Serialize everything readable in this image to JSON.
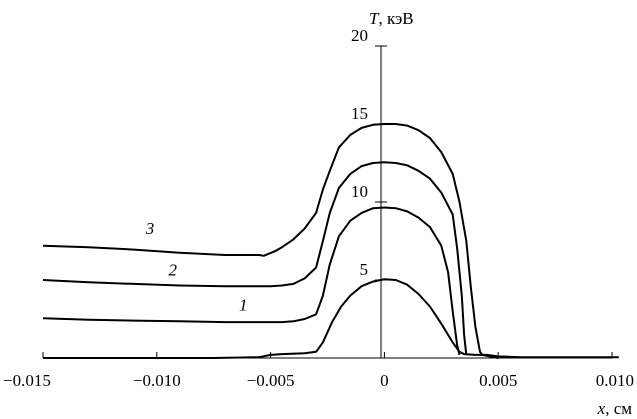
{
  "chart_data": {
    "type": "line",
    "xlabel": {
      "symbol": "x",
      "unit": ", см"
    },
    "ylabel": {
      "symbol": "T",
      "unit": ", кэВ"
    },
    "xlim": [
      -0.015,
      0.01
    ],
    "ylim": [
      0,
      20
    ],
    "x_ticks": [
      -0.015,
      -0.01,
      -0.005,
      0,
      0.005,
      0.01
    ],
    "x_tick_labels": [
      "−0.015",
      "−0.010",
      "−0.005",
      "0",
      "0.005",
      "0.010"
    ],
    "y_ticks": [
      5,
      10,
      15,
      20
    ],
    "y_tick_labels": [
      "5",
      "10",
      "15",
      "20"
    ],
    "grid": false,
    "series": [
      {
        "points": [
          [
            -0.015,
            0.0
          ],
          [
            -0.012,
            0.0
          ],
          [
            -0.01,
            0.0
          ],
          [
            -0.0075,
            0.0
          ],
          [
            -0.0055,
            0.05
          ],
          [
            -0.005,
            0.2
          ],
          [
            -0.0045,
            0.25
          ],
          [
            -0.0035,
            0.3
          ],
          [
            -0.003,
            0.4
          ],
          [
            -0.0027,
            1.0
          ],
          [
            -0.0023,
            2.3
          ],
          [
            -0.0019,
            3.3
          ],
          [
            -0.0015,
            4.0
          ],
          [
            -0.001,
            4.6
          ],
          [
            -0.0005,
            4.9
          ],
          [
            0.0,
            5.05
          ],
          [
            0.0005,
            5.0
          ],
          [
            0.001,
            4.7
          ],
          [
            0.0015,
            4.1
          ],
          [
            0.002,
            3.3
          ],
          [
            0.0025,
            2.2
          ],
          [
            0.003,
            1.0
          ],
          [
            0.0033,
            0.4
          ],
          [
            0.0035,
            0.25
          ],
          [
            0.004,
            0.2
          ],
          [
            0.0045,
            0.2
          ],
          [
            0.005,
            0.1
          ],
          [
            0.006,
            0.05
          ],
          [
            0.008,
            0.05
          ],
          [
            0.0103,
            0.05
          ]
        ]
      },
      {
        "label": "1",
        "points": [
          [
            -0.015,
            2.55
          ],
          [
            -0.013,
            2.45
          ],
          [
            -0.011,
            2.4
          ],
          [
            -0.009,
            2.35
          ],
          [
            -0.007,
            2.3
          ],
          [
            -0.005,
            2.3
          ],
          [
            -0.0045,
            2.3
          ],
          [
            -0.004,
            2.35
          ],
          [
            -0.0035,
            2.5
          ],
          [
            -0.003,
            2.8
          ],
          [
            -0.0027,
            4.0
          ],
          [
            -0.0024,
            6.0
          ],
          [
            -0.002,
            7.8
          ],
          [
            -0.0015,
            8.8
          ],
          [
            -0.001,
            9.3
          ],
          [
            -0.0005,
            9.6
          ],
          [
            0.0,
            9.65
          ],
          [
            0.0005,
            9.6
          ],
          [
            0.001,
            9.4
          ],
          [
            0.0015,
            9.0
          ],
          [
            0.002,
            8.4
          ],
          [
            0.0025,
            7.2
          ],
          [
            0.0028,
            5.5
          ],
          [
            0.003,
            3.0
          ],
          [
            0.0032,
            0.8
          ],
          [
            0.0033,
            0.2
          ]
        ]
      },
      {
        "label": "2",
        "points": [
          [
            -0.015,
            5.0
          ],
          [
            -0.013,
            4.85
          ],
          [
            -0.011,
            4.75
          ],
          [
            -0.009,
            4.65
          ],
          [
            -0.007,
            4.6
          ],
          [
            -0.005,
            4.6
          ],
          [
            -0.0045,
            4.65
          ],
          [
            -0.004,
            4.75
          ],
          [
            -0.0035,
            5.1
          ],
          [
            -0.003,
            5.8
          ],
          [
            -0.0027,
            7.5
          ],
          [
            -0.0024,
            9.3
          ],
          [
            -0.002,
            10.9
          ],
          [
            -0.0015,
            11.8
          ],
          [
            -0.001,
            12.3
          ],
          [
            -0.0005,
            12.5
          ],
          [
            0.0,
            12.55
          ],
          [
            0.0005,
            12.5
          ],
          [
            0.001,
            12.35
          ],
          [
            0.0015,
            12.0
          ],
          [
            0.002,
            11.5
          ],
          [
            0.0025,
            10.6
          ],
          [
            0.003,
            9.2
          ],
          [
            0.0032,
            7.0
          ],
          [
            0.0034,
            4.0
          ],
          [
            0.0035,
            1.5
          ],
          [
            0.0036,
            0.2
          ]
        ]
      },
      {
        "label": "3",
        "points": [
          [
            -0.015,
            7.2
          ],
          [
            -0.013,
            7.1
          ],
          [
            -0.011,
            6.95
          ],
          [
            -0.009,
            6.75
          ],
          [
            -0.007,
            6.6
          ],
          [
            -0.0055,
            6.6
          ],
          [
            -0.0053,
            6.55
          ],
          [
            -0.0048,
            6.85
          ],
          [
            -0.0045,
            7.1
          ],
          [
            -0.004,
            7.6
          ],
          [
            -0.0035,
            8.3
          ],
          [
            -0.003,
            9.3
          ],
          [
            -0.0027,
            10.8
          ],
          [
            -0.0024,
            12.0
          ],
          [
            -0.002,
            13.5
          ],
          [
            -0.0015,
            14.3
          ],
          [
            -0.001,
            14.75
          ],
          [
            -0.0005,
            14.95
          ],
          [
            0.0,
            15.0
          ],
          [
            0.0005,
            15.0
          ],
          [
            0.001,
            14.9
          ],
          [
            0.0015,
            14.6
          ],
          [
            0.002,
            14.1
          ],
          [
            0.0025,
            13.2
          ],
          [
            0.003,
            11.8
          ],
          [
            0.0033,
            10.0
          ],
          [
            0.0036,
            7.5
          ],
          [
            0.0038,
            4.5
          ],
          [
            0.004,
            2.0
          ],
          [
            0.0042,
            0.4
          ],
          [
            0.0043,
            0.2
          ],
          [
            0.005,
            0.0
          ]
        ]
      }
    ],
    "curve_labels": [
      {
        "text": "1",
        "x": -0.0062,
        "y": 2.65
      },
      {
        "text": "2",
        "x": -0.0093,
        "y": 4.9
      },
      {
        "text": "3",
        "x": -0.0103,
        "y": 7.55
      }
    ]
  }
}
